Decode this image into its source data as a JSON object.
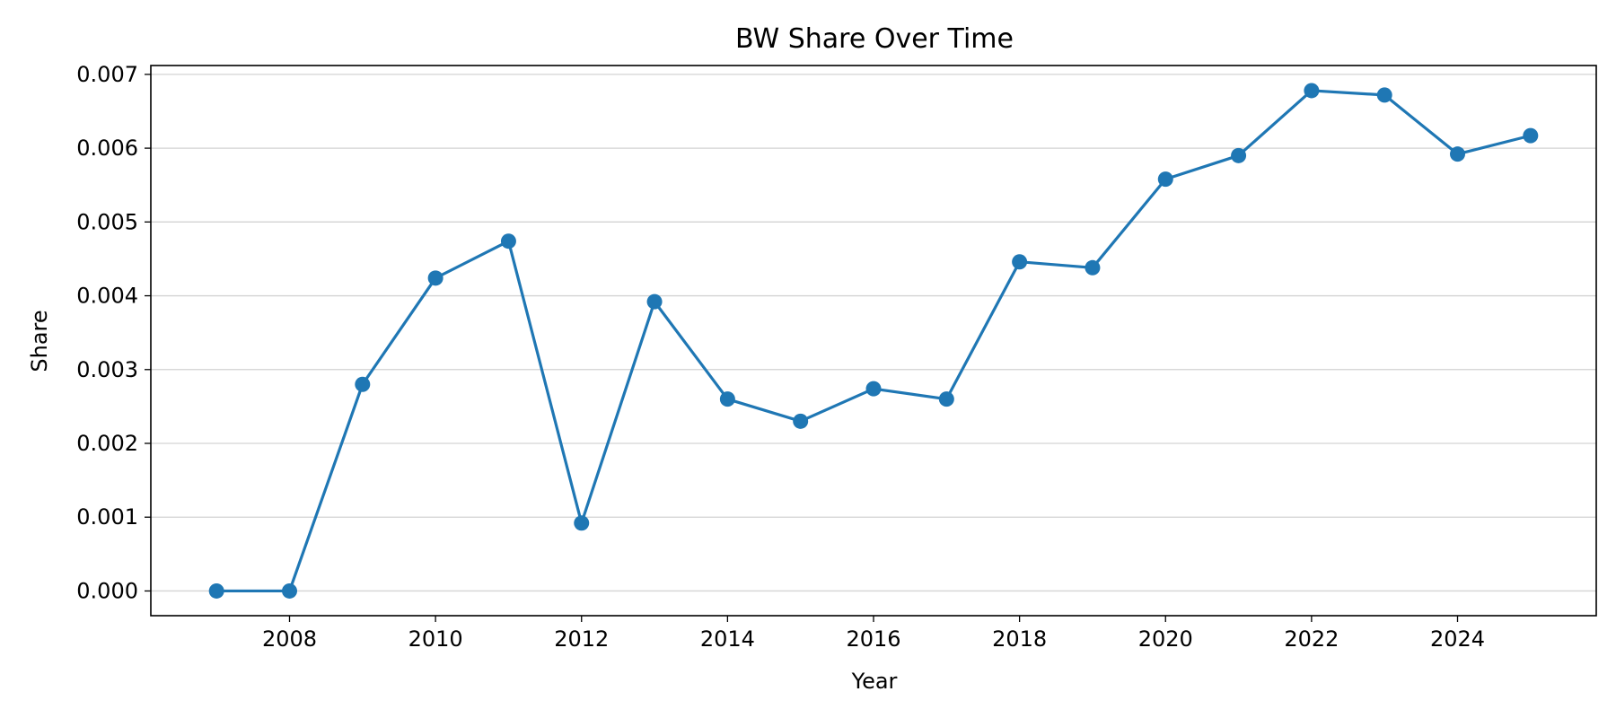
{
  "chart_data": {
    "type": "line",
    "title": "BW Share Over Time",
    "xlabel": "Year",
    "ylabel": "Share",
    "x": [
      2007,
      2008,
      2009,
      2010,
      2011,
      2012,
      2013,
      2014,
      2015,
      2016,
      2017,
      2018,
      2019,
      2020,
      2021,
      2022,
      2023,
      2024,
      2025
    ],
    "series": [
      {
        "values": [
          0.0,
          0.0,
          0.0028,
          0.00424,
          0.00474,
          0.00092,
          0.00392,
          0.0026,
          0.0023,
          0.00274,
          0.0026,
          0.00446,
          0.00438,
          0.00558,
          0.0059,
          0.00678,
          0.00672,
          0.00592,
          0.00617
        ],
        "color": "#1f77b4"
      }
    ],
    "xticks": [
      "2008",
      "2010",
      "2012",
      "2014",
      "2016",
      "2018",
      "2020",
      "2022",
      "2024"
    ],
    "yticks": [
      "0.000",
      "0.001",
      "0.002",
      "0.003",
      "0.004",
      "0.005",
      "0.006",
      "0.007"
    ],
    "xlim": [
      2006.1,
      2025.9
    ],
    "ylim": [
      -0.000335,
      0.00712
    ],
    "grid": "horizontal",
    "legend": "none",
    "grid_color": "#d3d3d3",
    "axis_color": "#000000"
  }
}
